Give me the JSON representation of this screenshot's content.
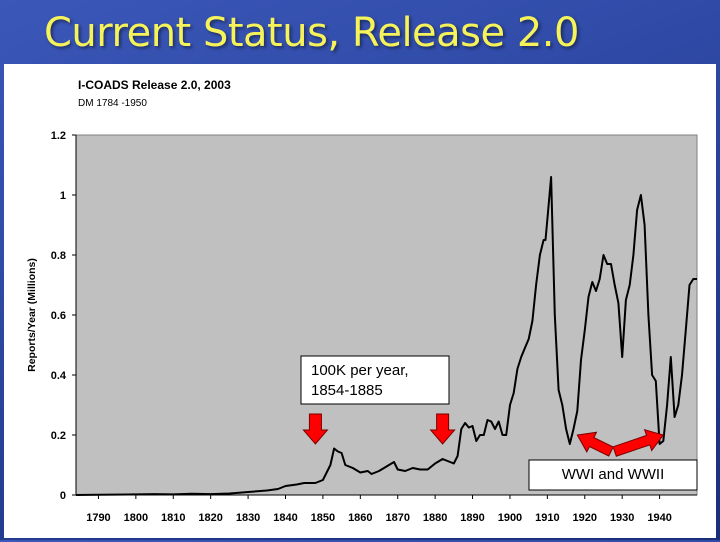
{
  "slide": {
    "title": "Current Status, Release 2.0"
  },
  "chart_data": {
    "type": "line",
    "title": "I-COADS Release 2.0, 2003",
    "subtitle": "DM 1784 -1950",
    "xlabel": "",
    "ylabel": "Reports/Year (Millions)",
    "xlim": [
      1784,
      1950
    ],
    "ylim": [
      0,
      1.2
    ],
    "x_ticks": [
      1790,
      1800,
      1810,
      1820,
      1830,
      1840,
      1850,
      1860,
      1870,
      1880,
      1890,
      1900,
      1910,
      1920,
      1930,
      1940
    ],
    "y_ticks": [
      0,
      0.2,
      0.4,
      0.6,
      0.8,
      1,
      1.2
    ],
    "y_tick_labels": [
      "0",
      "0.2",
      "0.4",
      "0.6",
      "0.8",
      "1",
      "1.2"
    ],
    "grid": false,
    "plot_background": "#c0c0c0",
    "line_color": "#000000",
    "series": [
      {
        "x": [
          1784,
          1790,
          1800,
          1805,
          1810,
          1815,
          1820,
          1825,
          1828,
          1830,
          1835,
          1838,
          1840,
          1843,
          1845,
          1848,
          1850,
          1852,
          1853,
          1854,
          1855,
          1856,
          1858,
          1860,
          1862,
          1863,
          1865,
          1867,
          1869,
          1870,
          1872,
          1874,
          1876,
          1878,
          1880,
          1882,
          1884,
          1885,
          1886,
          1887,
          1888,
          1889,
          1890,
          1891,
          1892,
          1893,
          1894,
          1895,
          1896,
          1897,
          1898,
          1899,
          1900,
          1901,
          1902,
          1903,
          1904,
          1905,
          1906,
          1907,
          1908,
          1909,
          1909.5,
          1910,
          1911,
          1912,
          1913,
          1914,
          1915,
          1916,
          1917,
          1918,
          1919,
          1920,
          1921,
          1922,
          1923,
          1924,
          1925,
          1926,
          1927,
          1928,
          1929,
          1930,
          1931,
          1932,
          1933,
          1934,
          1935,
          1936,
          1937,
          1938,
          1939,
          1940,
          1941,
          1942,
          1943,
          1944,
          1945,
          1946,
          1947,
          1948,
          1949,
          1950
        ],
        "values": [
          0,
          0.001,
          0.002,
          0.003,
          0.002,
          0.004,
          0.003,
          0.005,
          0.008,
          0.01,
          0.015,
          0.02,
          0.03,
          0.035,
          0.04,
          0.04,
          0.05,
          0.1,
          0.155,
          0.145,
          0.14,
          0.1,
          0.09,
          0.075,
          0.08,
          0.07,
          0.08,
          0.095,
          0.11,
          0.085,
          0.08,
          0.09,
          0.085,
          0.085,
          0.105,
          0.12,
          0.11,
          0.105,
          0.13,
          0.22,
          0.24,
          0.225,
          0.23,
          0.18,
          0.2,
          0.2,
          0.25,
          0.245,
          0.22,
          0.245,
          0.2,
          0.2,
          0.3,
          0.34,
          0.42,
          0.46,
          0.49,
          0.52,
          0.58,
          0.7,
          0.8,
          0.85,
          0.85,
          0.92,
          1.06,
          0.6,
          0.35,
          0.3,
          0.22,
          0.17,
          0.22,
          0.28,
          0.45,
          0.55,
          0.66,
          0.71,
          0.68,
          0.72,
          0.8,
          0.77,
          0.77,
          0.7,
          0.64,
          0.46,
          0.65,
          0.7,
          0.8,
          0.95,
          1.0,
          0.9,
          0.6,
          0.4,
          0.38,
          0.17,
          0.18,
          0.3,
          0.46,
          0.26,
          0.3,
          0.4,
          0.55,
          0.7,
          0.72,
          0.72
        ]
      }
    ],
    "annotations": [
      {
        "text_lines": [
          "100K per year,",
          "1854-1885"
        ]
      },
      {
        "text_lines": [
          "WWI and WWII"
        ]
      }
    ],
    "arrows": [
      {
        "tip": [
          1848,
          0.17
        ],
        "direction": "down"
      },
      {
        "tip": [
          1882,
          0.17
        ],
        "direction": "down"
      },
      {
        "tip": [
          1918,
          0.2
        ],
        "direction": "left",
        "from": [
          1927,
          0.145
        ]
      },
      {
        "tip": [
          1941,
          0.2
        ],
        "direction": "right",
        "from": [
          1928,
          0.145
        ]
      }
    ]
  }
}
